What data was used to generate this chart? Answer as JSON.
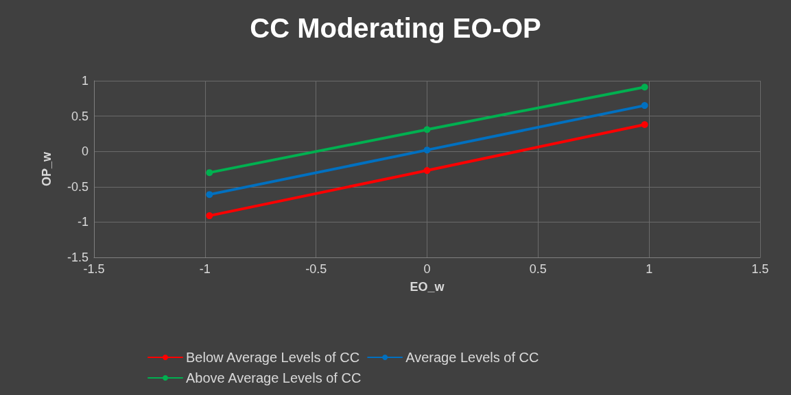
{
  "chart_data": {
    "type": "line",
    "title": "CC Moderating EO-OP",
    "xlabel": "EO_w",
    "ylabel": "OP_w",
    "x": [
      -0.98,
      0,
      0.98
    ],
    "series": [
      {
        "name": "Below Average Levels of CC",
        "color": "#ff0000",
        "values": [
          -0.91,
          -0.27,
          0.38
        ]
      },
      {
        "name": "Average Levels of CC",
        "color": "#0070c0",
        "values": [
          -0.61,
          0.02,
          0.65
        ]
      },
      {
        "name": "Above Average Levels of CC",
        "color": "#00b050",
        "values": [
          -0.3,
          0.31,
          0.91
        ]
      }
    ],
    "xlim": [
      -1.5,
      1.5
    ],
    "xticks": [
      -1.5,
      -1,
      -0.5,
      0,
      0.5,
      1,
      1.5
    ],
    "ylim": [
      -1.5,
      1
    ],
    "yticks": [
      -1.5,
      -1,
      -0.5,
      0,
      0.5,
      1
    ],
    "grid": true,
    "legend": "bottom",
    "marker": "circle",
    "line_style": "solid"
  }
}
